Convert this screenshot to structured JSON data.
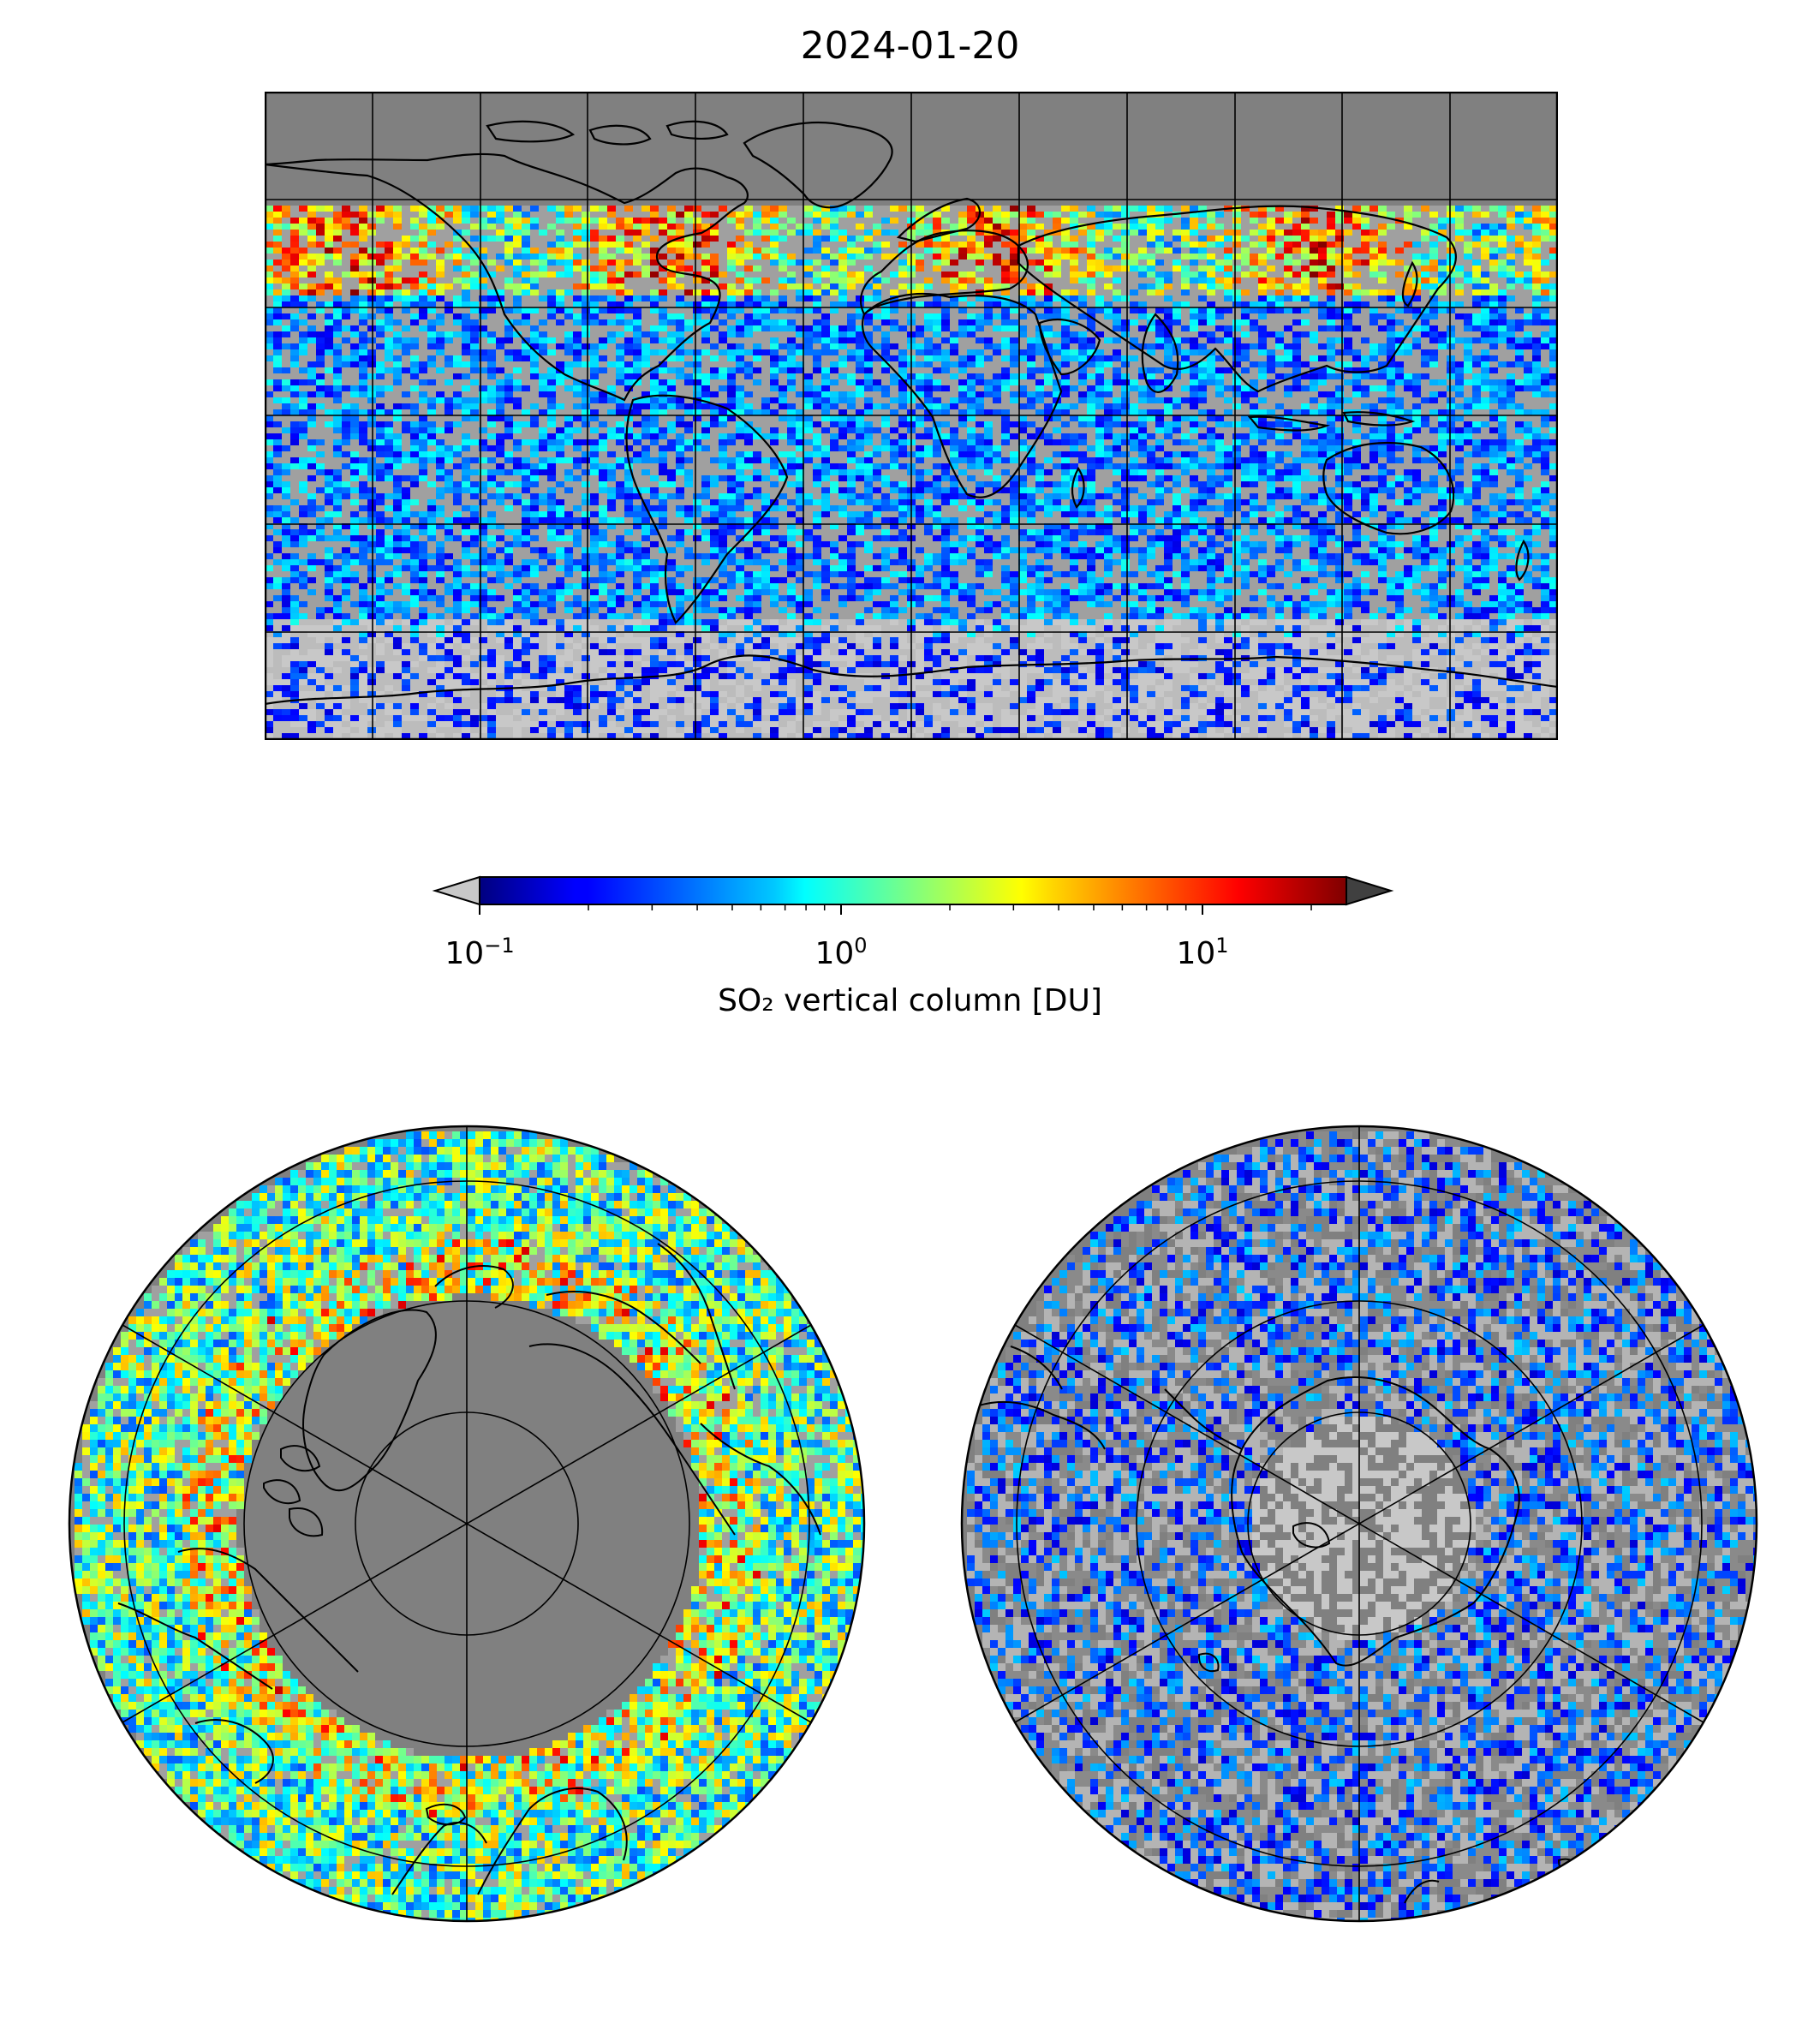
{
  "title": "2024-01-20",
  "colorbar": {
    "label": "SO₂ vertical column [DU]",
    "scale": "log",
    "range": [
      0.1,
      25
    ],
    "extend": "both",
    "colormap": "jet",
    "under_color": "#c8c8c8",
    "over_color": "#404040",
    "ticks": [
      {
        "base": "10",
        "exp": "−1",
        "value": 0.1
      },
      {
        "base": "10",
        "exp": "0",
        "value": 1
      },
      {
        "base": "10",
        "exp": "1",
        "value": 10
      }
    ]
  },
  "maps": [
    {
      "name": "global",
      "projection": "plate-carree",
      "background": "#808080"
    },
    {
      "name": "north-polar",
      "projection": "north-polar-stereographic",
      "background": "#808080"
    },
    {
      "name": "south-polar",
      "projection": "south-polar-stereographic",
      "background": "#808080"
    }
  ]
}
